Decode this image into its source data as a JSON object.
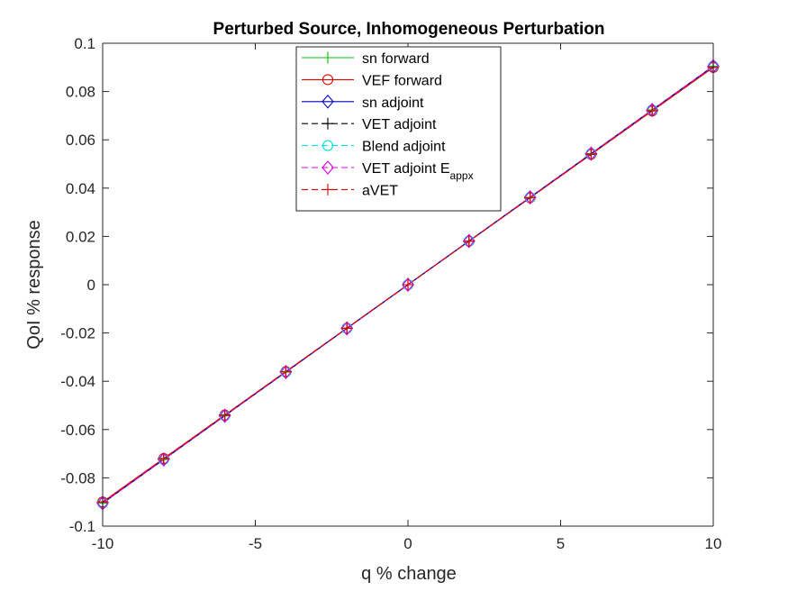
{
  "chart_data": {
    "type": "line",
    "title": "Perturbed Source, Inhomogeneous Perturbation",
    "xlabel": "q % change",
    "ylabel": "QoI % response",
    "xlim": [
      -10,
      10
    ],
    "ylim": [
      -0.1,
      0.1
    ],
    "xticks": [
      -10,
      -5,
      0,
      5,
      10
    ],
    "xtick_labels": [
      "-10",
      "-5",
      "0",
      "5",
      "10"
    ],
    "yticks": [
      -0.1,
      -0.08,
      -0.06,
      -0.04,
      -0.02,
      0,
      0.02,
      0.04,
      0.06,
      0.08,
      0.1
    ],
    "ytick_labels": [
      "-0.1",
      "-0.08",
      "-0.06",
      "-0.04",
      "-0.02",
      "0",
      "0.02",
      "0.04",
      "0.06",
      "0.08",
      "0.1"
    ],
    "grid": false,
    "legend_position": "top-center",
    "x": [
      -10,
      -8,
      -6,
      -4,
      -2,
      0,
      2,
      4,
      6,
      8,
      10
    ],
    "series": [
      {
        "name": "sn forward",
        "color": "#00c000",
        "dash": "solid",
        "marker": "plus",
        "values": [
          -0.0905,
          -0.0724,
          -0.0543,
          -0.0362,
          -0.0181,
          0,
          0.0181,
          0.0362,
          0.0543,
          0.0724,
          0.0905
        ]
      },
      {
        "name": "VEF forward",
        "color": "#e00000",
        "dash": "solid",
        "marker": "circle",
        "values": [
          -0.09,
          -0.072,
          -0.054,
          -0.036,
          -0.018,
          0,
          0.018,
          0.036,
          0.054,
          0.072,
          0.09
        ]
      },
      {
        "name": "sn adjoint",
        "color": "#0000c0",
        "dash": "solid",
        "marker": "diamond",
        "values": [
          -0.0905,
          -0.0724,
          -0.0543,
          -0.0362,
          -0.0181,
          0,
          0.0181,
          0.0362,
          0.0543,
          0.0724,
          0.0905
        ]
      },
      {
        "name": "VET adjoint",
        "color": "#000000",
        "dash": "dashed",
        "marker": "plus",
        "values": [
          -0.09,
          -0.072,
          -0.054,
          -0.036,
          -0.018,
          0,
          0.018,
          0.036,
          0.054,
          0.072,
          0.09
        ]
      },
      {
        "name": "Blend adjoint",
        "color": "#00e0e0",
        "dash": "dashed",
        "marker": "circle",
        "values": [
          -0.0905,
          -0.0724,
          -0.0543,
          -0.0362,
          -0.0181,
          0,
          0.0181,
          0.0362,
          0.0543,
          0.0724,
          0.0905
        ]
      },
      {
        "name": "VET adjoint E",
        "name_subscript": "appx",
        "color": "#e000e0",
        "dash": "dashed",
        "marker": "diamond",
        "values": [
          -0.0905,
          -0.0724,
          -0.0543,
          -0.0362,
          -0.0181,
          0,
          0.0181,
          0.0362,
          0.0543,
          0.0724,
          0.0905
        ]
      },
      {
        "name": "aVET",
        "color": "#e00000",
        "dash": "dashed",
        "marker": "plus",
        "values": [
          -0.09,
          -0.072,
          -0.054,
          -0.036,
          -0.018,
          0,
          0.018,
          0.036,
          0.054,
          0.072,
          0.09
        ]
      }
    ]
  }
}
